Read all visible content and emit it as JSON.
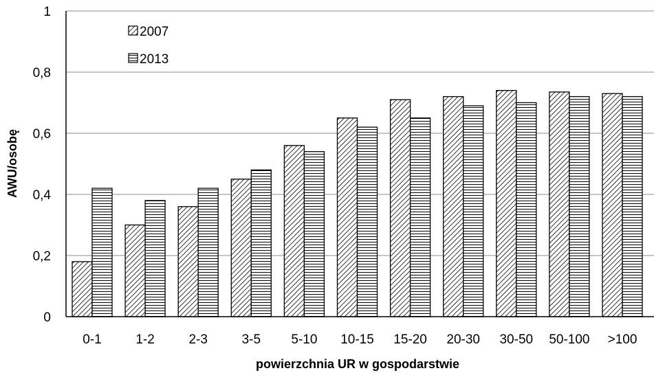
{
  "chart_data": {
    "type": "bar",
    "categories": [
      "0-1",
      "1-2",
      "2-3",
      "3-5",
      "5-10",
      "10-15",
      "15-20",
      "20-30",
      "30-50",
      "50-100",
      ">100"
    ],
    "series": [
      {
        "name": "2007",
        "values": [
          0.18,
          0.3,
          0.36,
          0.45,
          0.56,
          0.65,
          0.71,
          0.72,
          0.74,
          0.735,
          0.73
        ],
        "pattern": "diagonal-hatch"
      },
      {
        "name": "2013",
        "values": [
          0.42,
          0.38,
          0.42,
          0.48,
          0.54,
          0.62,
          0.65,
          0.69,
          0.7,
          0.72,
          0.72
        ],
        "pattern": "horizontal-lines"
      }
    ],
    "xlabel": "powierzchnia UR w gospodarstwie",
    "ylabel": "AWU/osobę",
    "ylim": [
      0,
      1
    ],
    "yticks": [
      0,
      0.2,
      0.4,
      0.6,
      0.8,
      1
    ],
    "ytick_labels": [
      "0",
      "0,2",
      "0,4",
      "0,6",
      "0,8",
      "1"
    ],
    "grid": true,
    "legend_position": "top-left"
  }
}
